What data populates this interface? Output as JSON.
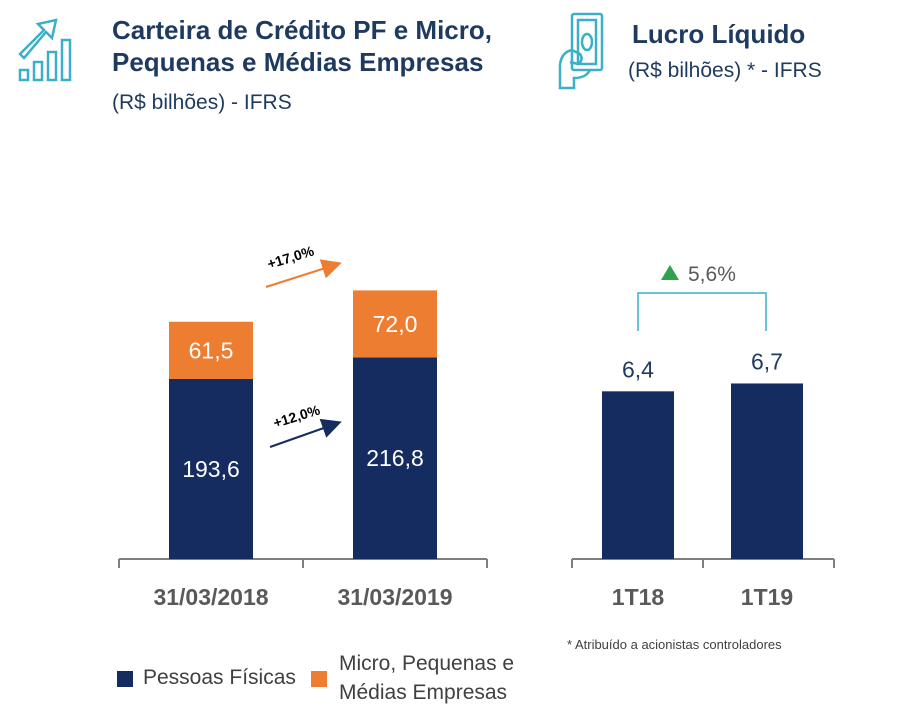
{
  "left_panel": {
    "icon": "growth-chart-icon",
    "title_line1": "Carteira de Crédito PF e Micro,",
    "title_line2": "Pequenas e Médias Empresas",
    "subtitle": "(R$ bilhões) - IFRS",
    "growth_pf": "+12,0%",
    "growth_mpme": "+17,0%"
  },
  "right_panel": {
    "icon": "money-hand-icon",
    "title": "Lucro Líquido",
    "subtitle": "(R$ bilhões) * - IFRS",
    "growth_label": "5,6%",
    "footnote": "* Atribuído a acionistas controladores"
  },
  "legend": {
    "pf_label": "Pessoas Físicas",
    "mpme_label_line1": "Micro, Pequenas e",
    "mpme_label_line2": "Médias Empresas"
  },
  "colors": {
    "navy": "#142c5f",
    "orange": "#ed7d31",
    "teal": "#3ab0c8",
    "green": "#2ca24a",
    "axis": "#7f7f7f"
  },
  "chart_data": [
    {
      "type": "bar",
      "stacked": true,
      "categories": [
        "31/03/2018",
        "31/03/2019"
      ],
      "series": [
        {
          "name": "Pessoas Físicas",
          "values": [
            193.6,
            216.8
          ],
          "labels": [
            "193,6",
            "216,8"
          ],
          "color": "#142c5f"
        },
        {
          "name": "Micro, Pequenas e Médias Empresas",
          "values": [
            61.5,
            72.0
          ],
          "labels": [
            "61,5",
            "72,0"
          ],
          "color": "#ed7d31"
        }
      ],
      "annotations": [
        "+12,0%",
        "+17,0%"
      ]
    },
    {
      "type": "bar",
      "categories": [
        "1T18",
        "1T19"
      ],
      "values": [
        6.4,
        6.7
      ],
      "labels": [
        "6,4",
        "6,7"
      ],
      "annotation": "5,6%"
    }
  ]
}
